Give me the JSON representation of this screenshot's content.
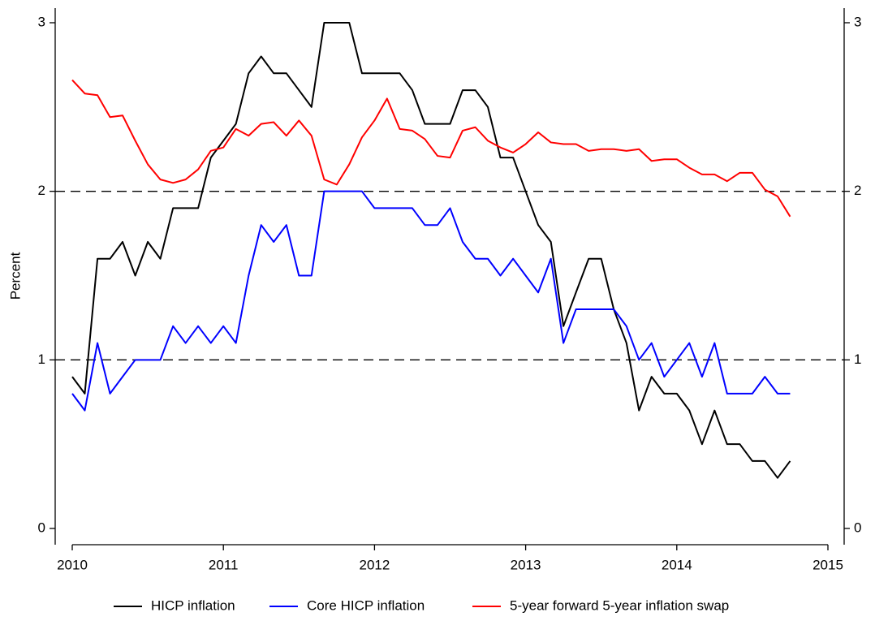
{
  "chart_data": {
    "type": "line",
    "ylabel": "Percent",
    "x": [
      2010,
      2010.083,
      2010.167,
      2010.25,
      2010.333,
      2010.417,
      2010.5,
      2010.583,
      2010.667,
      2010.75,
      2010.833,
      2010.917,
      2011,
      2011.083,
      2011.167,
      2011.25,
      2011.333,
      2011.417,
      2011.5,
      2011.583,
      2011.667,
      2011.75,
      2011.833,
      2011.917,
      2012,
      2012.083,
      2012.167,
      2012.25,
      2012.333,
      2012.417,
      2012.5,
      2012.583,
      2012.667,
      2012.75,
      2012.833,
      2012.917,
      2013,
      2013.083,
      2013.167,
      2013.25,
      2013.333,
      2013.417,
      2013.5,
      2013.583,
      2013.667,
      2013.75,
      2013.833,
      2013.917,
      2014,
      2014.083,
      2014.167,
      2014.25,
      2014.333,
      2014.417,
      2014.5,
      2014.583,
      2014.667,
      2014.75
    ],
    "series": [
      {
        "name": "HICP inflation",
        "color": "#000000",
        "values": [
          0.9,
          0.8,
          1.6,
          1.6,
          1.7,
          1.5,
          1.7,
          1.6,
          1.9,
          1.9,
          1.9,
          2.2,
          2.3,
          2.4,
          2.7,
          2.8,
          2.7,
          2.7,
          2.6,
          2.5,
          3.0,
          3.0,
          3.0,
          2.7,
          2.7,
          2.7,
          2.7,
          2.6,
          2.4,
          2.4,
          2.4,
          2.6,
          2.6,
          2.5,
          2.2,
          2.2,
          2.0,
          1.8,
          1.7,
          1.2,
          1.4,
          1.6,
          1.6,
          1.3,
          1.1,
          0.7,
          0.9,
          0.8,
          0.8,
          0.7,
          0.5,
          0.7,
          0.5,
          0.5,
          0.4,
          0.4,
          0.3,
          0.4
        ]
      },
      {
        "name": "Core HICP inflation",
        "color": "#0000ff",
        "values": [
          0.8,
          0.7,
          1.1,
          0.8,
          0.9,
          1.0,
          1.0,
          1.0,
          1.2,
          1.1,
          1.2,
          1.1,
          1.2,
          1.1,
          1.5,
          1.8,
          1.7,
          1.8,
          1.5,
          1.5,
          2.0,
          2.0,
          2.0,
          2.0,
          1.9,
          1.9,
          1.9,
          1.9,
          1.8,
          1.8,
          1.9,
          1.7,
          1.6,
          1.6,
          1.5,
          1.6,
          1.5,
          1.4,
          1.6,
          1.1,
          1.3,
          1.3,
          1.3,
          1.3,
          1.2,
          1.0,
          1.1,
          0.9,
          1.0,
          1.1,
          0.9,
          1.1,
          0.8,
          0.8,
          0.8,
          0.9,
          0.8,
          0.8
        ]
      },
      {
        "name": "5-year forward 5-year inflation swap",
        "color": "#ff0000",
        "values": [
          2.66,
          2.58,
          2.57,
          2.44,
          2.45,
          2.3,
          2.16,
          2.07,
          2.05,
          2.07,
          2.13,
          2.24,
          2.26,
          2.37,
          2.33,
          2.4,
          2.41,
          2.33,
          2.42,
          2.33,
          2.07,
          2.04,
          2.16,
          2.32,
          2.42,
          2.55,
          2.37,
          2.36,
          2.31,
          2.21,
          2.2,
          2.36,
          2.38,
          2.3,
          2.26,
          2.23,
          2.28,
          2.35,
          2.29,
          2.28,
          2.28,
          2.24,
          2.25,
          2.25,
          2.24,
          2.25,
          2.18,
          2.19,
          2.19,
          2.14,
          2.1,
          2.1,
          2.06,
          2.11,
          2.11,
          2.01,
          1.97,
          1.85
        ]
      }
    ],
    "xlim": [
      2010,
      2015
    ],
    "xticks": [
      2010,
      2011,
      2012,
      2013,
      2014,
      2015
    ],
    "ylim": [
      0,
      3
    ],
    "yticks": [
      0,
      1,
      2,
      3
    ],
    "y2lim": [
      0,
      3
    ],
    "y2ticks": [
      0,
      1,
      2,
      3
    ],
    "ref_lines": [
      1,
      2
    ],
    "legend": "bottom"
  }
}
